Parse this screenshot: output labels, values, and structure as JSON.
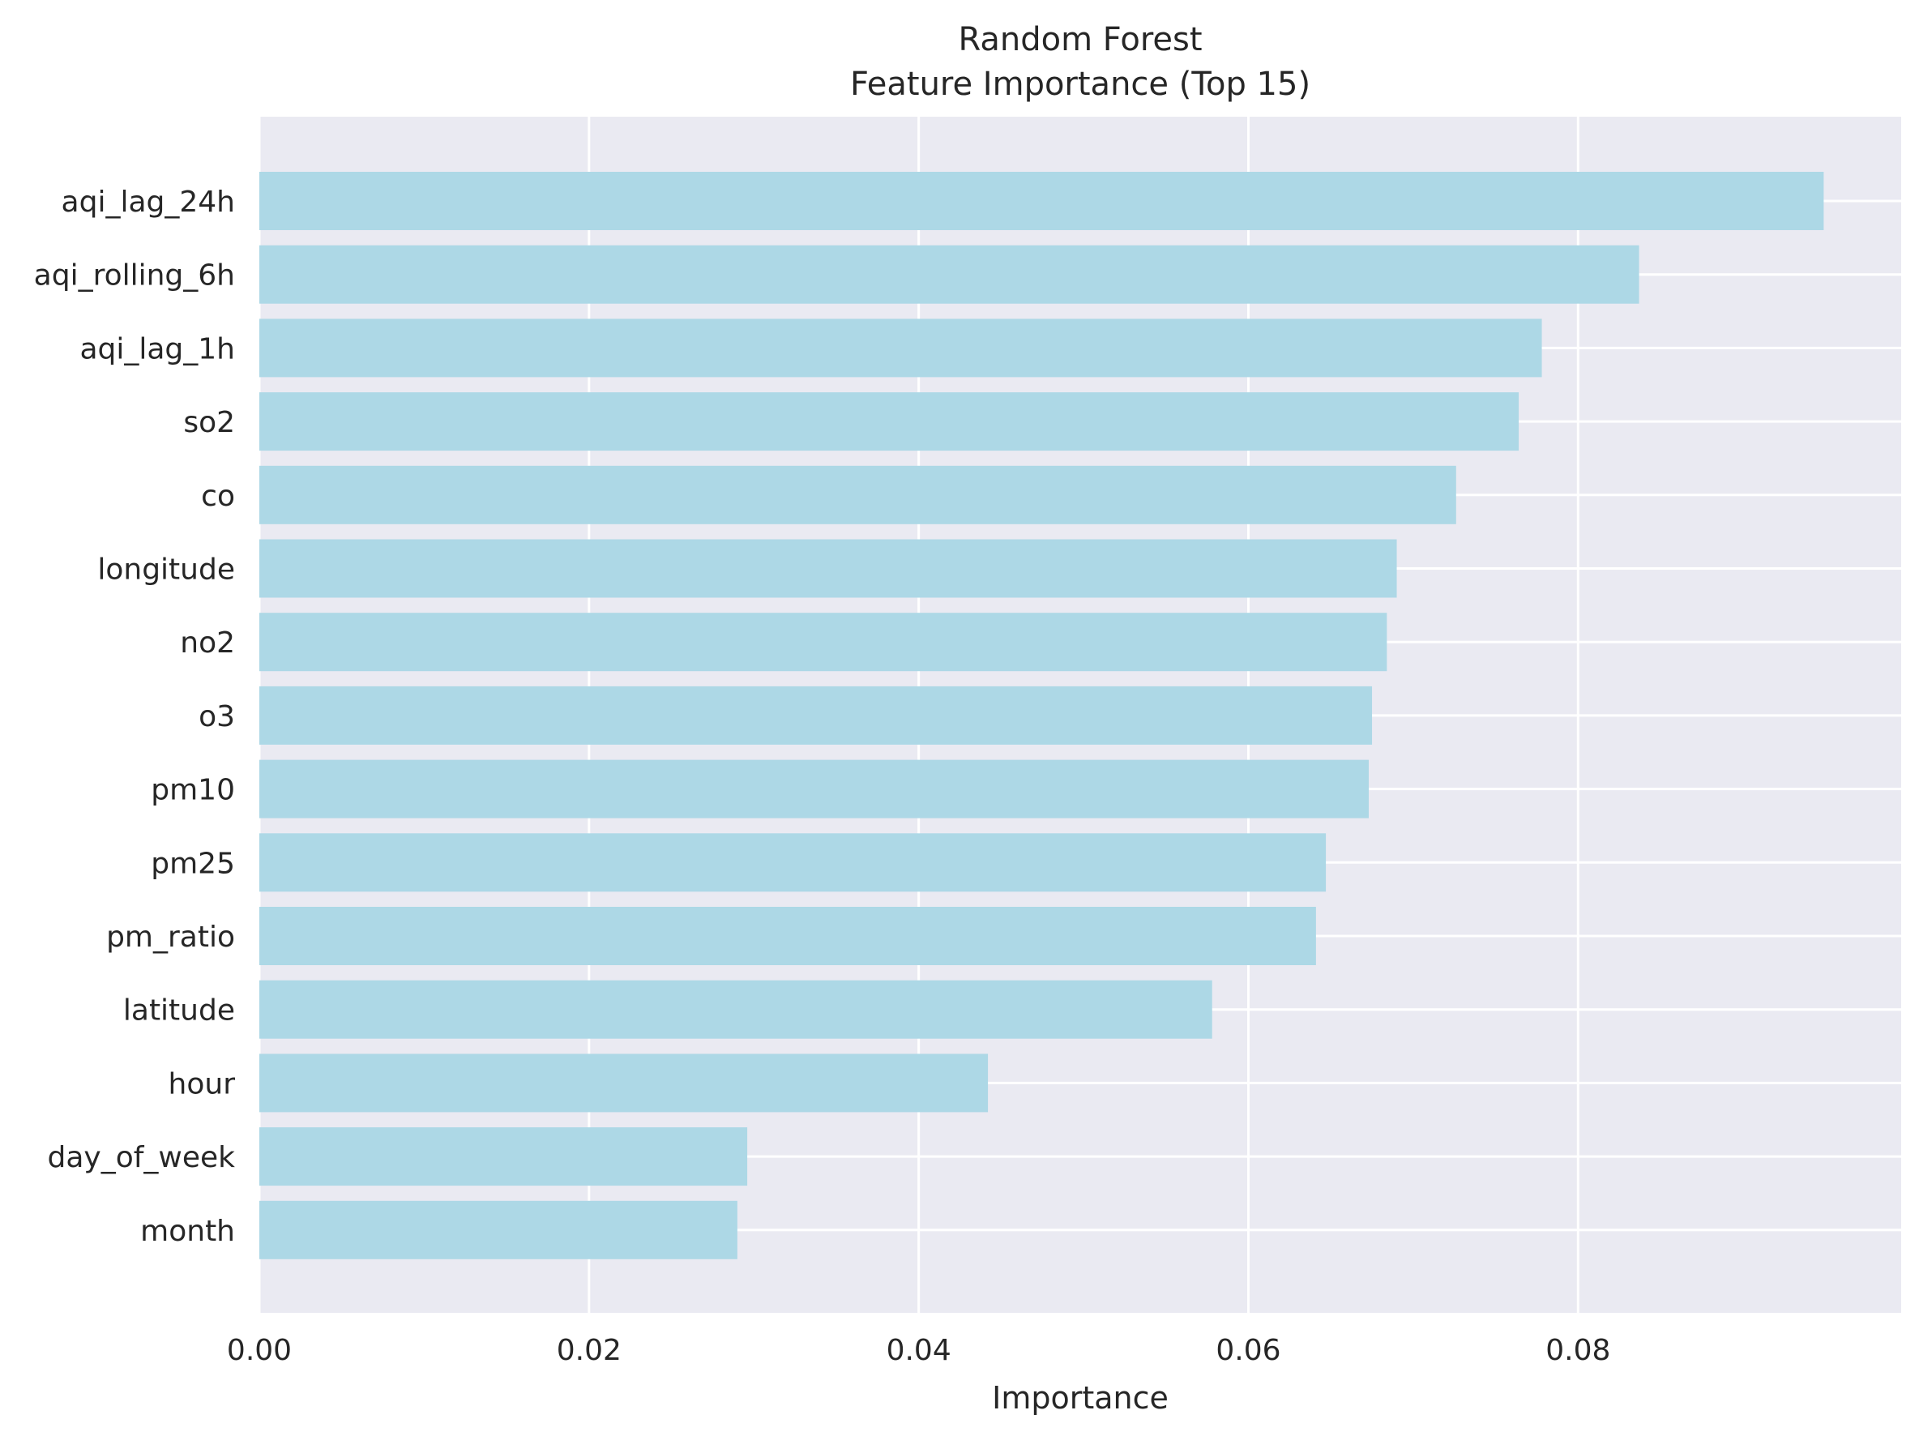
{
  "chart_data": {
    "type": "bar",
    "orientation": "horizontal",
    "title_lines": [
      "Random Forest",
      "Feature Importance (Top 15)"
    ],
    "xlabel": "Importance",
    "ylabel": "",
    "categories": [
      "aqi_lag_24h",
      "aqi_rolling_6h",
      "aqi_lag_1h",
      "so2",
      "co",
      "longitude",
      "no2",
      "o3",
      "pm10",
      "pm25",
      "pm_ratio",
      "latitude",
      "hour",
      "day_of_week",
      "month"
    ],
    "values": [
      0.0949,
      0.0837,
      0.0778,
      0.0764,
      0.0726,
      0.069,
      0.0684,
      0.0675,
      0.0673,
      0.0647,
      0.0641,
      0.0578,
      0.0442,
      0.0296,
      0.029
    ],
    "xlim": [
      0,
      0.0996
    ],
    "xticks": [
      0.0,
      0.02,
      0.04,
      0.06,
      0.08
    ],
    "xtick_labels": [
      "0.00",
      "0.02",
      "0.04",
      "0.06",
      "0.08"
    ],
    "grid": true,
    "colors": {
      "bar": "#add8e6",
      "plot_bg": "#eaeaf2",
      "grid": "#ffffff",
      "text": "#262626"
    }
  }
}
